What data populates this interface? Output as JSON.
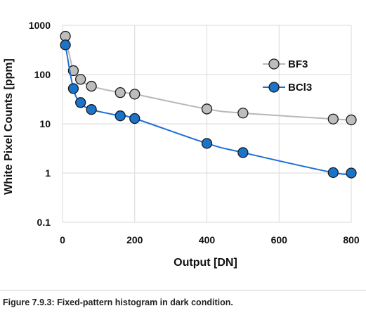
{
  "chart_data": {
    "type": "line",
    "xlabel": "Output [DN]",
    "ylabel": "White Pixel Counts [ppm]",
    "xlim": [
      0,
      800
    ],
    "ylim": [
      0.1,
      1000
    ],
    "yscale": "log",
    "xticks": [
      0,
      200,
      400,
      600,
      800
    ],
    "xtick_labels": [
      "0",
      "200",
      "400",
      "600",
      "800"
    ],
    "yticks": [
      0.1,
      1,
      10,
      100,
      1000
    ],
    "ytick_labels": [
      "0.1",
      "1",
      "10",
      "100",
      "1000"
    ],
    "grid": "major gridlines on",
    "legend_position": "right",
    "series": [
      {
        "name": "BF3",
        "color": "#bdbdbd",
        "line_color": "#b8b8b8",
        "x": [
          8,
          30,
          50,
          80,
          160,
          200,
          400,
          500,
          750,
          800
        ],
        "y": [
          600,
          120,
          80,
          58,
          43,
          40,
          20,
          16.5,
          12.5,
          12
        ]
      },
      {
        "name": "BCl3",
        "color": "#1b74c9",
        "line_color": "#1f6fd6",
        "x": [
          8,
          30,
          50,
          80,
          160,
          200,
          400,
          500,
          750,
          800
        ],
        "y": [
          400,
          52,
          27,
          19.5,
          14.5,
          12.8,
          4,
          2.6,
          1.02,
          1.0
        ]
      }
    ]
  },
  "caption": "Figure 7.9.3: Fixed-pattern histogram in dark condition."
}
